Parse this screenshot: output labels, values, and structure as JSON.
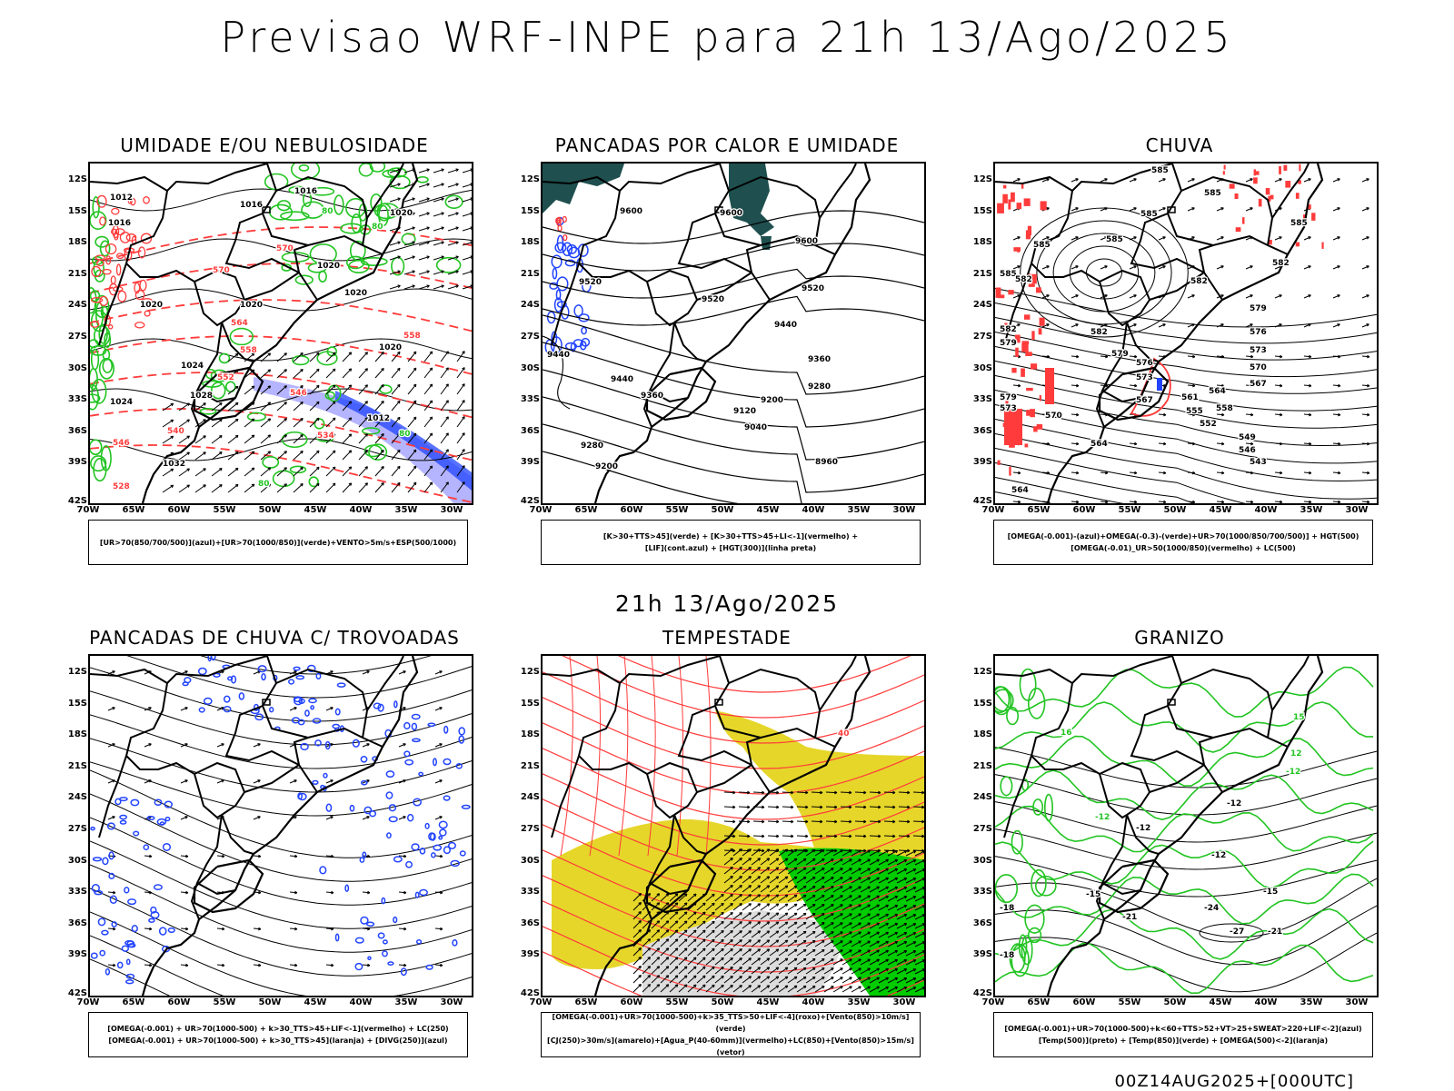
{
  "main_title": "Previsao WRF-INPE  para 21h 13/Ago/2025",
  "mid_title": "21h 13/Ago/2025",
  "footer": "00Z14AUG2025+[000UTC]",
  "axes": {
    "y_labels": [
      "12S",
      "15S",
      "18S",
      "21S",
      "24S",
      "27S",
      "30S",
      "33S",
      "36S",
      "39S",
      "42S"
    ],
    "x_labels": [
      "70W",
      "65W",
      "60W",
      "55W",
      "50W",
      "45W",
      "40W",
      "35W",
      "30W"
    ]
  },
  "colors": {
    "red": "#ff3b3b",
    "green": "#22c422",
    "blue": "#2244ff",
    "lavender": "#a8a8ff",
    "yellow": "#e6d62a",
    "bright_green": "#00cc00",
    "teal": "#1f4f4f",
    "gray": "#dddddd"
  },
  "panels": [
    {
      "id": "umidade",
      "title": "UMIDADE E/OU NEBULOSIDADE",
      "legend": [
        "[UR>70(850/700/500)](azul)+[UR>70(1000/850)](verde)+VENTO>5m/s+ESP(500/1000)"
      ],
      "labels": [
        {
          "t": "1012",
          "x": 22,
          "y": 40,
          "c": "black"
        },
        {
          "t": "1016",
          "x": 20,
          "y": 68,
          "c": "black"
        },
        {
          "t": "1016",
          "x": 165,
          "y": 48,
          "c": "black"
        },
        {
          "t": "1016",
          "x": 225,
          "y": 33,
          "c": "black"
        },
        {
          "t": "1020",
          "x": 250,
          "y": 115,
          "c": "black"
        },
        {
          "t": "1020",
          "x": 165,
          "y": 158,
          "c": "black"
        },
        {
          "t": "1020",
          "x": 55,
          "y": 158,
          "c": "black"
        },
        {
          "t": "1020",
          "x": 280,
          "y": 145,
          "c": "black"
        },
        {
          "t": "1020",
          "x": 330,
          "y": 57,
          "c": "black"
        },
        {
          "t": "1020",
          "x": 318,
          "y": 205,
          "c": "black"
        },
        {
          "t": "1024",
          "x": 100,
          "y": 225,
          "c": "black"
        },
        {
          "t": "1028",
          "x": 110,
          "y": 258,
          "c": "black"
        },
        {
          "t": "1024",
          "x": 22,
          "y": 265,
          "c": "black"
        },
        {
          "t": "1032",
          "x": 80,
          "y": 333,
          "c": "black"
        },
        {
          "t": "1012",
          "x": 305,
          "y": 283,
          "c": "black"
        },
        {
          "t": "570",
          "x": 135,
          "y": 120,
          "c": "red"
        },
        {
          "t": "570",
          "x": 205,
          "y": 96,
          "c": "red"
        },
        {
          "t": "564",
          "x": 155,
          "y": 178,
          "c": "red"
        },
        {
          "t": "558",
          "x": 345,
          "y": 192,
          "c": "red"
        },
        {
          "t": "552",
          "x": 140,
          "y": 238,
          "c": "red"
        },
        {
          "t": "546",
          "x": 220,
          "y": 255,
          "c": "red"
        },
        {
          "t": "540",
          "x": 85,
          "y": 297,
          "c": "red"
        },
        {
          "t": "534",
          "x": 250,
          "y": 302,
          "c": "red"
        },
        {
          "t": "546",
          "x": 25,
          "y": 310,
          "c": "red"
        },
        {
          "t": "528",
          "x": 25,
          "y": 358,
          "c": "red"
        },
        {
          "t": "558",
          "x": 165,
          "y": 208,
          "c": "red"
        },
        {
          "t": "80",
          "x": 310,
          "y": 72,
          "c": "green"
        },
        {
          "t": "80",
          "x": 255,
          "y": 55,
          "c": "green"
        },
        {
          "t": "80",
          "x": 340,
          "y": 300,
          "c": "green"
        },
        {
          "t": "80",
          "x": 185,
          "y": 355,
          "c": "green"
        }
      ]
    },
    {
      "id": "pancadas_calor",
      "title": "PANCADAS POR CALOR E UMIDADE",
      "legend": [
        "[K>30+TTS>45](verde) + [K>30+TTS>45+LI<-1](vermelho) +",
        "[LIF](cont.azul) + [HGT(300)](linha preta)"
      ],
      "labels": [
        {
          "t": "9600",
          "x": 85,
          "y": 55,
          "c": "black"
        },
        {
          "t": "9600",
          "x": 195,
          "y": 57,
          "c": "black"
        },
        {
          "t": "9600",
          "x": 278,
          "y": 88,
          "c": "black"
        },
        {
          "t": "9520",
          "x": 40,
          "y": 133,
          "c": "black"
        },
        {
          "t": "9520",
          "x": 175,
          "y": 152,
          "c": "black"
        },
        {
          "t": "9520",
          "x": 285,
          "y": 140,
          "c": "black"
        },
        {
          "t": "9440",
          "x": 5,
          "y": 213,
          "c": "black"
        },
        {
          "t": "9440",
          "x": 75,
          "y": 240,
          "c": "black"
        },
        {
          "t": "9440",
          "x": 255,
          "y": 180,
          "c": "black"
        },
        {
          "t": "9360",
          "x": 108,
          "y": 258,
          "c": "black"
        },
        {
          "t": "9360",
          "x": 292,
          "y": 218,
          "c": "black"
        },
        {
          "t": "9280",
          "x": 292,
          "y": 248,
          "c": "black"
        },
        {
          "t": "9200",
          "x": 240,
          "y": 263,
          "c": "black"
        },
        {
          "t": "9120",
          "x": 210,
          "y": 275,
          "c": "black"
        },
        {
          "t": "9040",
          "x": 222,
          "y": 293,
          "c": "black"
        },
        {
          "t": "8960",
          "x": 300,
          "y": 331,
          "c": "black"
        },
        {
          "t": "9280",
          "x": 42,
          "y": 313,
          "c": "black"
        },
        {
          "t": "9200",
          "x": 58,
          "y": 336,
          "c": "black"
        }
      ]
    },
    {
      "id": "chuva",
      "title": "CHUVA",
      "legend": [
        "[OMEGA(-0.001)-(azul)+OMEGA(-0.3)-(verde)+UR>70(1000/850/700/500)] + HGT(500)",
        "[OMEGA(-0.01)_UR>50(1000/850)(vermelho) + LC(500)"
      ],
      "labels": [
        {
          "t": "585",
          "x": 172,
          "y": 10,
          "c": "black"
        },
        {
          "t": "585",
          "x": 230,
          "y": 35,
          "c": "black"
        },
        {
          "t": "585",
          "x": 160,
          "y": 58,
          "c": "black"
        },
        {
          "t": "585",
          "x": 122,
          "y": 86,
          "c": "black"
        },
        {
          "t": "585",
          "x": 325,
          "y": 68,
          "c": "black"
        },
        {
          "t": "585",
          "x": 42,
          "y": 92,
          "c": "black"
        },
        {
          "t": "585",
          "x": 5,
          "y": 124,
          "c": "black"
        },
        {
          "t": "582",
          "x": 22,
          "y": 130,
          "c": "black"
        },
        {
          "t": "582",
          "x": 215,
          "y": 132,
          "c": "black"
        },
        {
          "t": "582",
          "x": 305,
          "y": 112,
          "c": "black"
        },
        {
          "t": "582",
          "x": 105,
          "y": 188,
          "c": "black"
        },
        {
          "t": "582",
          "x": 5,
          "y": 185,
          "c": "black"
        },
        {
          "t": "579",
          "x": 5,
          "y": 200,
          "c": "black"
        },
        {
          "t": "579",
          "x": 280,
          "y": 162,
          "c": "black"
        },
        {
          "t": "579",
          "x": 128,
          "y": 212,
          "c": "black"
        },
        {
          "t": "576",
          "x": 280,
          "y": 188,
          "c": "black"
        },
        {
          "t": "576",
          "x": 155,
          "y": 222,
          "c": "black"
        },
        {
          "t": "573",
          "x": 280,
          "y": 208,
          "c": "black"
        },
        {
          "t": "573",
          "x": 155,
          "y": 238,
          "c": "black"
        },
        {
          "t": "570",
          "x": 280,
          "y": 227,
          "c": "black"
        },
        {
          "t": "570",
          "x": 55,
          "y": 280,
          "c": "black"
        },
        {
          "t": "567",
          "x": 280,
          "y": 245,
          "c": "black"
        },
        {
          "t": "567",
          "x": 155,
          "y": 263,
          "c": "black"
        },
        {
          "t": "564",
          "x": 235,
          "y": 253,
          "c": "black"
        },
        {
          "t": "561",
          "x": 205,
          "y": 260,
          "c": "black"
        },
        {
          "t": "558",
          "x": 243,
          "y": 272,
          "c": "black"
        },
        {
          "t": "555",
          "x": 210,
          "y": 275,
          "c": "black"
        },
        {
          "t": "552",
          "x": 225,
          "y": 289,
          "c": "black"
        },
        {
          "t": "549",
          "x": 268,
          "y": 304,
          "c": "black"
        },
        {
          "t": "546",
          "x": 268,
          "y": 318,
          "c": "black"
        },
        {
          "t": "543",
          "x": 280,
          "y": 331,
          "c": "black"
        },
        {
          "t": "564",
          "x": 105,
          "y": 311,
          "c": "black"
        },
        {
          "t": "564",
          "x": 18,
          "y": 362,
          "c": "black"
        },
        {
          "t": "579",
          "x": 5,
          "y": 260,
          "c": "black"
        },
        {
          "t": "573",
          "x": 5,
          "y": 272,
          "c": "black"
        }
      ]
    },
    {
      "id": "trovoadas",
      "title": "PANCADAS DE CHUVA C/ TROVOADAS",
      "legend": [
        "[OMEGA(-0.001) + UR>70(1000-500) + k>30_TTS>45+LIF<-1](vermelho) + LC(250)",
        "[OMEGA(-0.001) + UR>70(1000-500) + k>30_TTS>45](laranja) + [DIVG(250)](azul)"
      ],
      "labels": []
    },
    {
      "id": "tempestade",
      "title": "TEMPESTADE",
      "legend": [
        "[OMEGA(-0.001)+UR>70(1000-500)+k>35_TTS>50+LIF<-4](roxo)+[Vento(850)>10m/s](verde)",
        "[CJ(250)>30m/s](amarelo)+[Agua_P(40-60mm)](vermelho)+LC(850)+[Vento(850)>15m/s](vetor)"
      ],
      "labels": [
        {
          "t": "40",
          "x": 325,
          "y": 88,
          "c": "red"
        }
      ]
    },
    {
      "id": "granizo",
      "title": "GRANIZO",
      "legend": [
        "[OMEGA(-0.001)+UR>70(1000-500)+k<60+TTS>52+VT>25+SWEAT>220+LIF<-2](azul)",
        "[Temp(500)](preto) + [Temp(850)](verde) + [OMEGA(500)<-2](laranja)"
      ],
      "labels": [
        {
          "t": "-12",
          "x": 255,
          "y": 165,
          "c": "black"
        },
        {
          "t": "-12",
          "x": 155,
          "y": 192,
          "c": "black"
        },
        {
          "t": "-12",
          "x": 110,
          "y": 180,
          "c": "green"
        },
        {
          "t": "-12",
          "x": 238,
          "y": 222,
          "c": "black"
        },
        {
          "t": "-12",
          "x": 320,
          "y": 130,
          "c": "green"
        },
        {
          "t": "-15",
          "x": 100,
          "y": 265,
          "c": "black"
        },
        {
          "t": "-15",
          "x": 295,
          "y": 262,
          "c": "black"
        },
        {
          "t": "-18",
          "x": 5,
          "y": 280,
          "c": "black"
        },
        {
          "t": "-21",
          "x": 140,
          "y": 290,
          "c": "black"
        },
        {
          "t": "-24",
          "x": 230,
          "y": 280,
          "c": "black"
        },
        {
          "t": "-27",
          "x": 258,
          "y": 306,
          "c": "black"
        },
        {
          "t": "-21",
          "x": 300,
          "y": 306,
          "c": "black"
        },
        {
          "t": "-18",
          "x": 5,
          "y": 332,
          "c": "black"
        },
        {
          "t": "16",
          "x": 72,
          "y": 87,
          "c": "green"
        },
        {
          "t": "12",
          "x": 325,
          "y": 110,
          "c": "green"
        },
        {
          "t": "15",
          "x": 328,
          "y": 70,
          "c": "green"
        }
      ]
    }
  ]
}
